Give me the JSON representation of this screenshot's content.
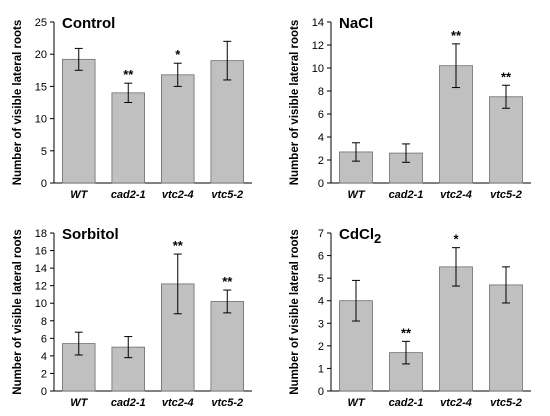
{
  "chart_data": [
    {
      "type": "bar",
      "title": "Control",
      "ylabel": "Number of visible lateral roots",
      "categories": [
        "WT",
        "cad2-1",
        "vtc2-4",
        "vtc5-2"
      ],
      "values": [
        19.2,
        14.0,
        16.8,
        19.0
      ],
      "errors": [
        1.7,
        1.5,
        1.8,
        3.0
      ],
      "significance": [
        "",
        "**",
        "*",
        ""
      ],
      "ylim": [
        0,
        25
      ],
      "yticks": [
        "0",
        "5",
        "10",
        "15",
        "20",
        "25"
      ],
      "bar_color": "#c0c0c0",
      "grid": false
    },
    {
      "type": "bar",
      "title": "NaCl",
      "ylabel": "Number of visible lateral roots",
      "categories": [
        "WT",
        "cad2-1",
        "vtc2-4",
        "vtc5-2"
      ],
      "values": [
        2.7,
        2.6,
        10.2,
        7.5
      ],
      "errors": [
        0.8,
        0.8,
        1.9,
        1.0
      ],
      "significance": [
        "",
        "",
        "**",
        "**"
      ],
      "ylim": [
        0,
        14
      ],
      "yticks": [
        "0",
        "2",
        "4",
        "6",
        "8",
        "10",
        "12",
        "14"
      ],
      "bar_color": "#c0c0c0",
      "grid": false
    },
    {
      "type": "bar",
      "title": "Sorbitol",
      "ylabel": "Number of visible lateral roots",
      "categories": [
        "WT",
        "cad2-1",
        "vtc2-4",
        "vtc5-2"
      ],
      "values": [
        5.4,
        5.0,
        12.2,
        10.2
      ],
      "errors": [
        1.3,
        1.2,
        3.4,
        1.3
      ],
      "significance": [
        "",
        "",
        "**",
        "**"
      ],
      "ylim": [
        0,
        18
      ],
      "yticks": [
        "0",
        "2",
        "4",
        "6",
        "8",
        "10",
        "12",
        "14",
        "16",
        "18"
      ],
      "bar_color": "#c0c0c0",
      "grid": false
    },
    {
      "type": "bar",
      "title": "CdCl",
      "title_sub": "2",
      "ylabel": "Number of visible lateral roots",
      "categories": [
        "WT",
        "cad2-1",
        "vtc2-4",
        "vtc5-2"
      ],
      "values": [
        4.0,
        1.7,
        5.5,
        4.7
      ],
      "errors": [
        0.9,
        0.5,
        0.85,
        0.8
      ],
      "significance": [
        "",
        "**",
        "*",
        ""
      ],
      "ylim": [
        0,
        7
      ],
      "yticks": [
        "0",
        "1",
        "2",
        "3",
        "4",
        "5",
        "6",
        "7"
      ],
      "bar_color": "#c0c0c0",
      "grid": false
    }
  ]
}
